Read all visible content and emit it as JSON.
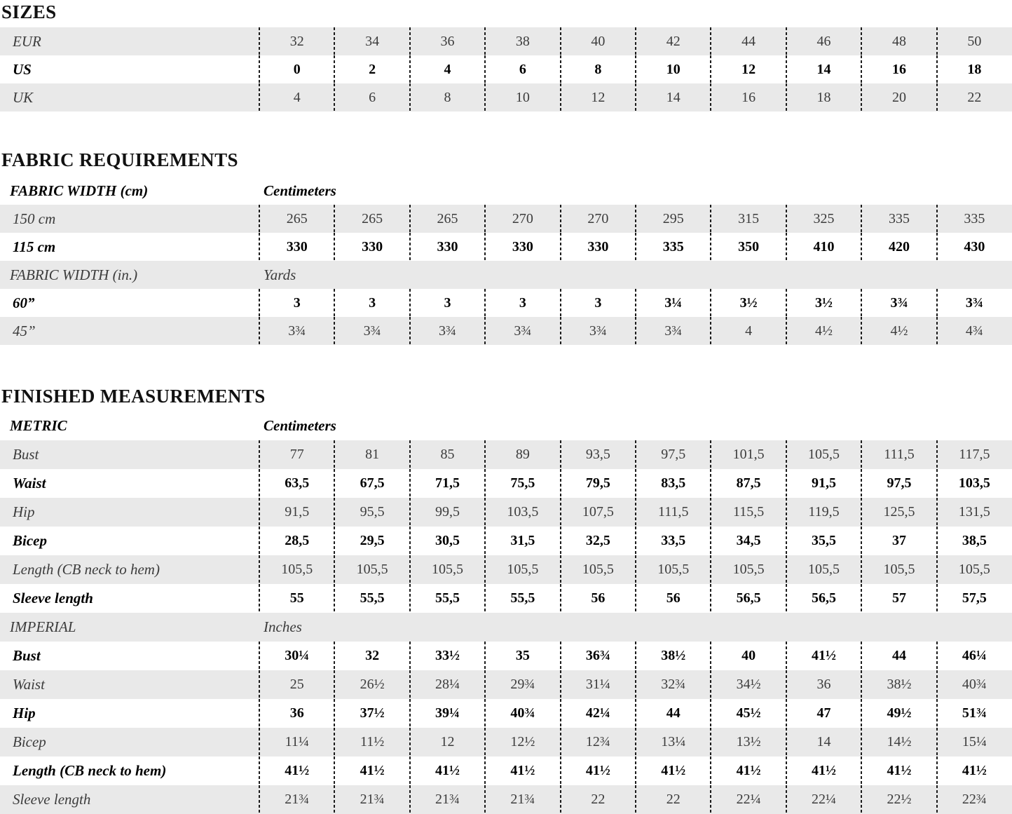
{
  "colors": {
    "background": "#ffffff",
    "stripe": "#e9e9e9",
    "dash_line": "#1c1c1c",
    "text_regular": "#3c3c3c",
    "text_bold": "#000000"
  },
  "sections": [
    {
      "title": "SIZES",
      "rows": [
        {
          "label": "EUR",
          "style": "regular",
          "shaded": true,
          "values": [
            "32",
            "34",
            "36",
            "38",
            "40",
            "42",
            "44",
            "46",
            "48",
            "50"
          ]
        },
        {
          "label": "US",
          "style": "bold",
          "shaded": false,
          "values": [
            "0",
            "2",
            "4",
            "6",
            "8",
            "10",
            "12",
            "14",
            "16",
            "18"
          ]
        },
        {
          "label": "UK",
          "style": "regular",
          "shaded": true,
          "values": [
            "4",
            "6",
            "8",
            "10",
            "12",
            "14",
            "16",
            "18",
            "20",
            "22"
          ]
        }
      ]
    },
    {
      "title": "FABRIC REQUIREMENTS",
      "rows": [
        {
          "label": "FABRIC WIDTH (cm)",
          "style": "bold",
          "shaded": false,
          "header": true,
          "unit": "Centimeters"
        },
        {
          "label": "150 cm",
          "style": "regular",
          "shaded": true,
          "values": [
            "265",
            "265",
            "265",
            "270",
            "270",
            "295",
            "315",
            "325",
            "335",
            "335"
          ]
        },
        {
          "label": "115 cm",
          "style": "bold",
          "shaded": false,
          "values": [
            "330",
            "330",
            "330",
            "330",
            "330",
            "335",
            "350",
            "410",
            "420",
            "430"
          ]
        },
        {
          "label": "FABRIC WIDTH (in.)",
          "style": "regular",
          "shaded": true,
          "header": true,
          "unit": "Yards"
        },
        {
          "label": "60”",
          "style": "bold",
          "shaded": false,
          "values": [
            "3",
            "3",
            "3",
            "3",
            "3",
            "3¼",
            "3½",
            "3½",
            "3¾",
            "3¾"
          ]
        },
        {
          "label": "45”",
          "style": "regular",
          "shaded": true,
          "values": [
            "3¾",
            "3¾",
            "3¾",
            "3¾",
            "3¾",
            "3¾",
            "4",
            "4½",
            "4½",
            "4¾"
          ]
        }
      ]
    },
    {
      "title": "FINISHED MEASUREMENTS",
      "rows": [
        {
          "label": "METRIC",
          "style": "bold",
          "shaded": false,
          "header": true,
          "unit": "Centimeters"
        },
        {
          "label": "Bust",
          "style": "regular",
          "shaded": true,
          "values": [
            "77",
            "81",
            "85",
            "89",
            "93,5",
            "97,5",
            "101,5",
            "105,5",
            "111,5",
            "117,5"
          ]
        },
        {
          "label": "Waist",
          "style": "bold",
          "shaded": false,
          "values": [
            "63,5",
            "67,5",
            "71,5",
            "75,5",
            "79,5",
            "83,5",
            "87,5",
            "91,5",
            "97,5",
            "103,5"
          ]
        },
        {
          "label": "Hip",
          "style": "regular",
          "shaded": true,
          "values": [
            "91,5",
            "95,5",
            "99,5",
            "103,5",
            "107,5",
            "111,5",
            "115,5",
            "119,5",
            "125,5",
            "131,5"
          ]
        },
        {
          "label": "Bicep",
          "style": "bold",
          "shaded": false,
          "values": [
            "28,5",
            "29,5",
            "30,5",
            "31,5",
            "32,5",
            "33,5",
            "34,5",
            "35,5",
            "37",
            "38,5"
          ]
        },
        {
          "label": "Length (CB neck to hem)",
          "style": "regular",
          "shaded": true,
          "values": [
            "105,5",
            "105,5",
            "105,5",
            "105,5",
            "105,5",
            "105,5",
            "105,5",
            "105,5",
            "105,5",
            "105,5"
          ]
        },
        {
          "label": "Sleeve length",
          "style": "bold",
          "shaded": false,
          "values": [
            "55",
            "55,5",
            "55,5",
            "55,5",
            "56",
            "56",
            "56,5",
            "56,5",
            "57",
            "57,5"
          ]
        },
        {
          "label": "IMPERIAL",
          "style": "regular",
          "shaded": true,
          "header": true,
          "unit": "Inches"
        },
        {
          "label": "Bust",
          "style": "bold",
          "shaded": false,
          "values": [
            "30¼",
            "32",
            "33½",
            "35",
            "36¾",
            "38½",
            "40",
            "41½",
            "44",
            "46¼"
          ]
        },
        {
          "label": "Waist",
          "style": "regular",
          "shaded": true,
          "values": [
            "25",
            "26½",
            "28¼",
            "29¾",
            "31¼",
            "32¾",
            "34½",
            "36",
            "38½",
            "40¾"
          ]
        },
        {
          "label": "Hip",
          "style": "bold",
          "shaded": false,
          "values": [
            "36",
            "37½",
            "39¼",
            "40¾",
            "42¼",
            "44",
            "45½",
            "47",
            "49½",
            "51¾"
          ]
        },
        {
          "label": "Bicep",
          "style": "regular",
          "shaded": true,
          "values": [
            "11¼",
            "11½",
            "12",
            "12½",
            "12¾",
            "13¼",
            "13½",
            "14",
            "14½",
            "15¼"
          ]
        },
        {
          "label": "Length (CB neck to hem)",
          "style": "bold",
          "shaded": false,
          "values": [
            "41½",
            "41½",
            "41½",
            "41½",
            "41½",
            "41½",
            "41½",
            "41½",
            "41½",
            "41½"
          ]
        },
        {
          "label": "Sleeve length",
          "style": "regular",
          "shaded": true,
          "values": [
            "21¾",
            "21¾",
            "21¾",
            "21¾",
            "22",
            "22",
            "22¼",
            "22¼",
            "22½",
            "22¾"
          ]
        }
      ]
    }
  ]
}
